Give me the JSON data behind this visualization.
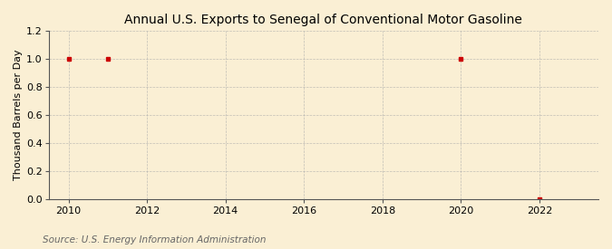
{
  "title": "Annual U.S. Exports to Senegal of Conventional Motor Gasoline",
  "ylabel": "Thousand Barrels per Day",
  "source_text": "Source: U.S. Energy Information Administration",
  "x_data": [
    2010,
    2011,
    2020,
    2022
  ],
  "y_data": [
    1.0,
    1.0,
    1.0,
    0.0
  ],
  "xlim": [
    2009.5,
    2023.5
  ],
  "ylim": [
    0.0,
    1.2
  ],
  "xticks": [
    2010,
    2012,
    2014,
    2016,
    2018,
    2020,
    2022
  ],
  "yticks": [
    0.0,
    0.2,
    0.4,
    0.6,
    0.8,
    1.0,
    1.2
  ],
  "marker_color": "#cc0000",
  "marker": "s",
  "marker_size": 3.5,
  "background_color": "#faefd4",
  "plot_bg_color": "#faefd4",
  "grid_color": "#aaaaaa",
  "title_fontsize": 10,
  "label_fontsize": 8,
  "tick_fontsize": 8,
  "source_fontsize": 7.5
}
